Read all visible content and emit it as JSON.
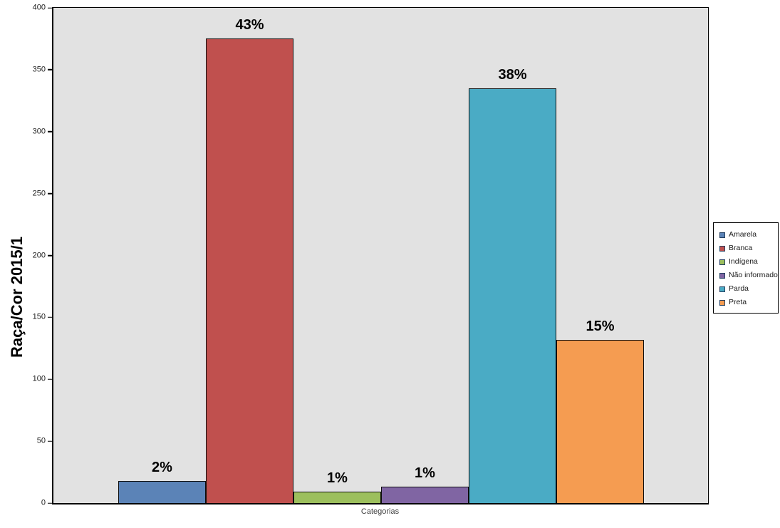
{
  "chart_data": {
    "type": "bar",
    "title": "",
    "xlabel": "Categorias",
    "ylabel": "Raça/Cor 2015/1",
    "ylim": [
      0,
      400
    ],
    "yticks": [
      0,
      50,
      100,
      150,
      200,
      250,
      300,
      350,
      400
    ],
    "grid": false,
    "legend_position": "right",
    "plot_background": "#e2e2e2",
    "categories": [
      "Categorias"
    ],
    "series": [
      {
        "name": "Amarela",
        "value": 18,
        "data_label": "2%",
        "color": "#5b83b7"
      },
      {
        "name": "Branca",
        "value": 375,
        "data_label": "43%",
        "color": "#c0504e"
      },
      {
        "name": "Indígena",
        "value": 9,
        "data_label": "1%",
        "color": "#9cbf5d"
      },
      {
        "name": "Não informado",
        "value": 13,
        "data_label": "1%",
        "color": "#8065a3"
      },
      {
        "name": "Parda",
        "value": 335,
        "data_label": "38%",
        "color": "#4aabc5"
      },
      {
        "name": "Preta",
        "value": 132,
        "data_label": "15%",
        "color": "#f59c51"
      }
    ]
  }
}
